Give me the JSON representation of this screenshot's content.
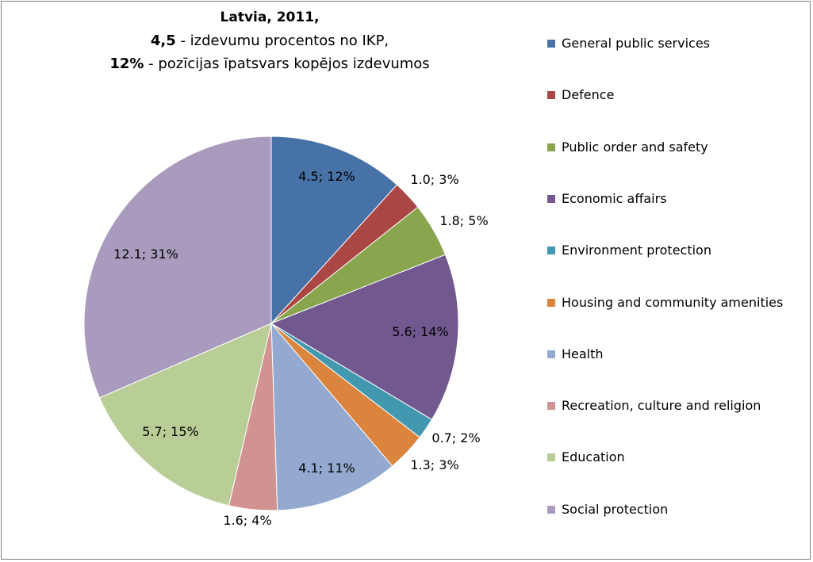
{
  "title": {
    "line1": "Latvia, 2011,",
    "line2_bold": "4,5",
    "line2_rest": " - izdevumu procentos no IKP,",
    "line3_bold": "12%",
    "line3_rest": " - pozīcijas īpatsvars kopējos izdevumos"
  },
  "chart_data": {
    "type": "pie",
    "title": "Latvia, 2011, 4,5 - izdevumu procentos no IKP, 12% - pozīcijas īpatsvars kopējos izdevumos",
    "legend_position": "right",
    "start_angle": "12 o'clock, clockwise",
    "categories": [
      "General public services",
      "Defence",
      "Public order and safety",
      "Economic affairs",
      "Environment protection",
      "Housing and community amenities",
      "Health",
      "Recreation, culture and religion",
      "Education",
      "Social protection"
    ],
    "values": [
      4.5,
      1.0,
      1.8,
      5.6,
      0.7,
      1.3,
      4.1,
      1.6,
      5.7,
      12.1
    ],
    "percents": [
      12,
      3,
      5,
      14,
      2,
      3,
      11,
      4,
      15,
      31
    ],
    "labels": [
      "4.5; 12%",
      "1.0; 3%",
      "1.8; 5%",
      "5.6; 14%",
      "0.7; 2%",
      "1.3; 3%",
      "4.1; 11%",
      "1.6; 4%",
      "5.7; 15%",
      "12.1; 31%"
    ],
    "colors": [
      "#4672A8",
      "#AA4643",
      "#89A54E",
      "#71588F",
      "#4198AF",
      "#DB843D",
      "#93A9CF",
      "#D19392",
      "#B9CD96",
      "#A99BBD"
    ]
  }
}
